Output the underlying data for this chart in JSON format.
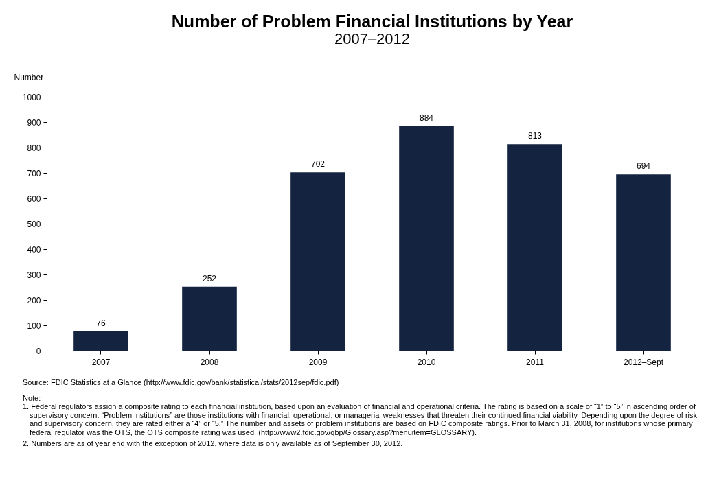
{
  "chart_data": {
    "type": "bar",
    "title": "Number of Problem Financial Institutions by Year",
    "subtitle": "2007–2012",
    "ylabel": "Number",
    "categories": [
      "2007",
      "2008",
      "2009",
      "2010",
      "2011",
      "2012–Sept"
    ],
    "values": [
      76,
      252,
      702,
      884,
      813,
      694
    ],
    "color": "#14233f",
    "ylim": [
      0,
      1000
    ],
    "yticks": [
      0,
      100,
      200,
      300,
      400,
      500,
      600,
      700,
      800,
      900,
      1000
    ],
    "data_labels": true,
    "annotations": [
      "Source: FDIC Statistics at a Glance (http://www.fdic.gov/bank/statistical/stats/2012sep/fdic.pdf)",
      "Note:",
      "1. Federal regulators assign a composite rating to each financial institution, based upon an evaluation of financial and operational criteria. The rating is based on a scale of “1” to “5” in ascending order of supervisory concern. “Problem institutions” are those institutions with financial, operational, or managerial weaknesses that threaten their continued financial viability. Depending upon the degree of risk and supervisory concern, they are rated either a “4” or “5.” The number and assets of problem institutions are based on FDIC composite ratings. Prior to March 31, 2008, for institutions whose primary federal regulator was the OTS, the OTS composite rating was used. (http://www2.fdic.gov/qbp/Glossary.asp?menuitem=GLOSSARY).",
      "2. Numbers are as of year end with the exception of 2012, where data is only available as of September 30, 2012."
    ]
  }
}
